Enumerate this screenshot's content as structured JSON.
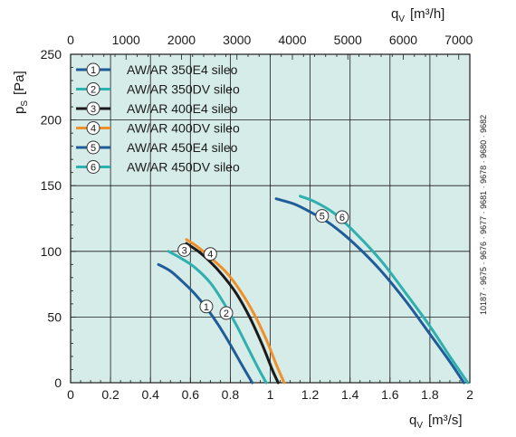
{
  "chart_data": {
    "type": "line",
    "axes": {
      "x": {
        "symbol": "q",
        "subscript": "V",
        "unit": "[m³/s]",
        "range": [
          0,
          2
        ],
        "ticks": [
          "0",
          "0.2",
          "0.4",
          "0.6",
          "0.8",
          "1",
          "1.2",
          "1.4",
          "1.6",
          "1.8",
          "2"
        ]
      },
      "x_top": {
        "symbol": "q",
        "subscript": "V",
        "unit": "[m³/h]",
        "range": [
          0,
          7200
        ],
        "ticks": [
          "0",
          "1000",
          "2000",
          "3000",
          "4000",
          "5000",
          "6000",
          "7000"
        ]
      },
      "y": {
        "symbol": "p",
        "subscript": "S",
        "unit": "[Pa]",
        "range": [
          0,
          250
        ],
        "ticks": [
          "0",
          "50",
          "100",
          "150",
          "200",
          "250"
        ]
      }
    },
    "grid": true,
    "legend_position": "top-left",
    "series": [
      {
        "id": "1",
        "name": "AW/AR 350E4 sileo",
        "color": "#1f5c99",
        "points": [
          [
            0.44,
            90
          ],
          [
            0.5,
            85
          ],
          [
            0.56,
            77
          ],
          [
            0.62,
            68
          ],
          [
            0.68,
            57
          ],
          [
            0.74,
            44
          ],
          [
            0.8,
            29
          ],
          [
            0.86,
            13
          ],
          [
            0.91,
            0
          ]
        ]
      },
      {
        "id": "2",
        "name": "AW/AR 350DV sileo",
        "color": "#2fb0b0",
        "points": [
          [
            0.49,
            100
          ],
          [
            0.55,
            95
          ],
          [
            0.62,
            88
          ],
          [
            0.7,
            76
          ],
          [
            0.77,
            60
          ],
          [
            0.83,
            44
          ],
          [
            0.89,
            26
          ],
          [
            0.94,
            11
          ],
          [
            0.98,
            0
          ]
        ]
      },
      {
        "id": "3",
        "name": "AW/AR 400E4 sileo",
        "color": "#1a1a1a",
        "points": [
          [
            0.58,
            106
          ],
          [
            0.64,
            100
          ],
          [
            0.7,
            92
          ],
          [
            0.76,
            82
          ],
          [
            0.83,
            68
          ],
          [
            0.9,
            49
          ],
          [
            0.96,
            29
          ],
          [
            1.01,
            10
          ],
          [
            1.04,
            0
          ]
        ]
      },
      {
        "id": "4",
        "name": "AW/AR 400DV sileo",
        "color": "#f0902a",
        "points": [
          [
            0.58,
            109
          ],
          [
            0.64,
            103
          ],
          [
            0.71,
            94
          ],
          [
            0.78,
            84
          ],
          [
            0.85,
            70
          ],
          [
            0.92,
            52
          ],
          [
            0.98,
            33
          ],
          [
            1.03,
            14
          ],
          [
            1.07,
            0
          ]
        ]
      },
      {
        "id": "5",
        "name": "AW/AR 450E4 sileo",
        "color": "#1f5c99",
        "points": [
          [
            1.03,
            140
          ],
          [
            1.12,
            136
          ],
          [
            1.2,
            130
          ],
          [
            1.3,
            121
          ],
          [
            1.42,
            106
          ],
          [
            1.55,
            86
          ],
          [
            1.68,
            62
          ],
          [
            1.8,
            37
          ],
          [
            1.9,
            16
          ],
          [
            1.97,
            0
          ]
        ]
      },
      {
        "id": "6",
        "name": "AW/AR 450DV sileo",
        "color": "#2fb0b0",
        "points": [
          [
            1.15,
            142
          ],
          [
            1.22,
            138
          ],
          [
            1.32,
            129
          ],
          [
            1.44,
            112
          ],
          [
            1.56,
            92
          ],
          [
            1.68,
            68
          ],
          [
            1.8,
            43
          ],
          [
            1.9,
            20
          ],
          [
            1.99,
            0
          ]
        ]
      }
    ],
    "curve_markers": [
      {
        "label": "1",
        "x": 0.68,
        "y": 58
      },
      {
        "label": "2",
        "x": 0.78,
        "y": 53
      },
      {
        "label": "3",
        "x": 0.57,
        "y": 101
      },
      {
        "label": "4",
        "x": 0.7,
        "y": 98
      },
      {
        "label": "5",
        "x": 1.26,
        "y": 127
      },
      {
        "label": "6",
        "x": 1.36,
        "y": 126
      }
    ],
    "side_note": "10187 · 9675 · 9676 · 9677 · 9681 · 9678 · 9680 · 9682"
  },
  "colors": {
    "plot_background": "#d6ece8",
    "grid": "#1a1a1a"
  }
}
